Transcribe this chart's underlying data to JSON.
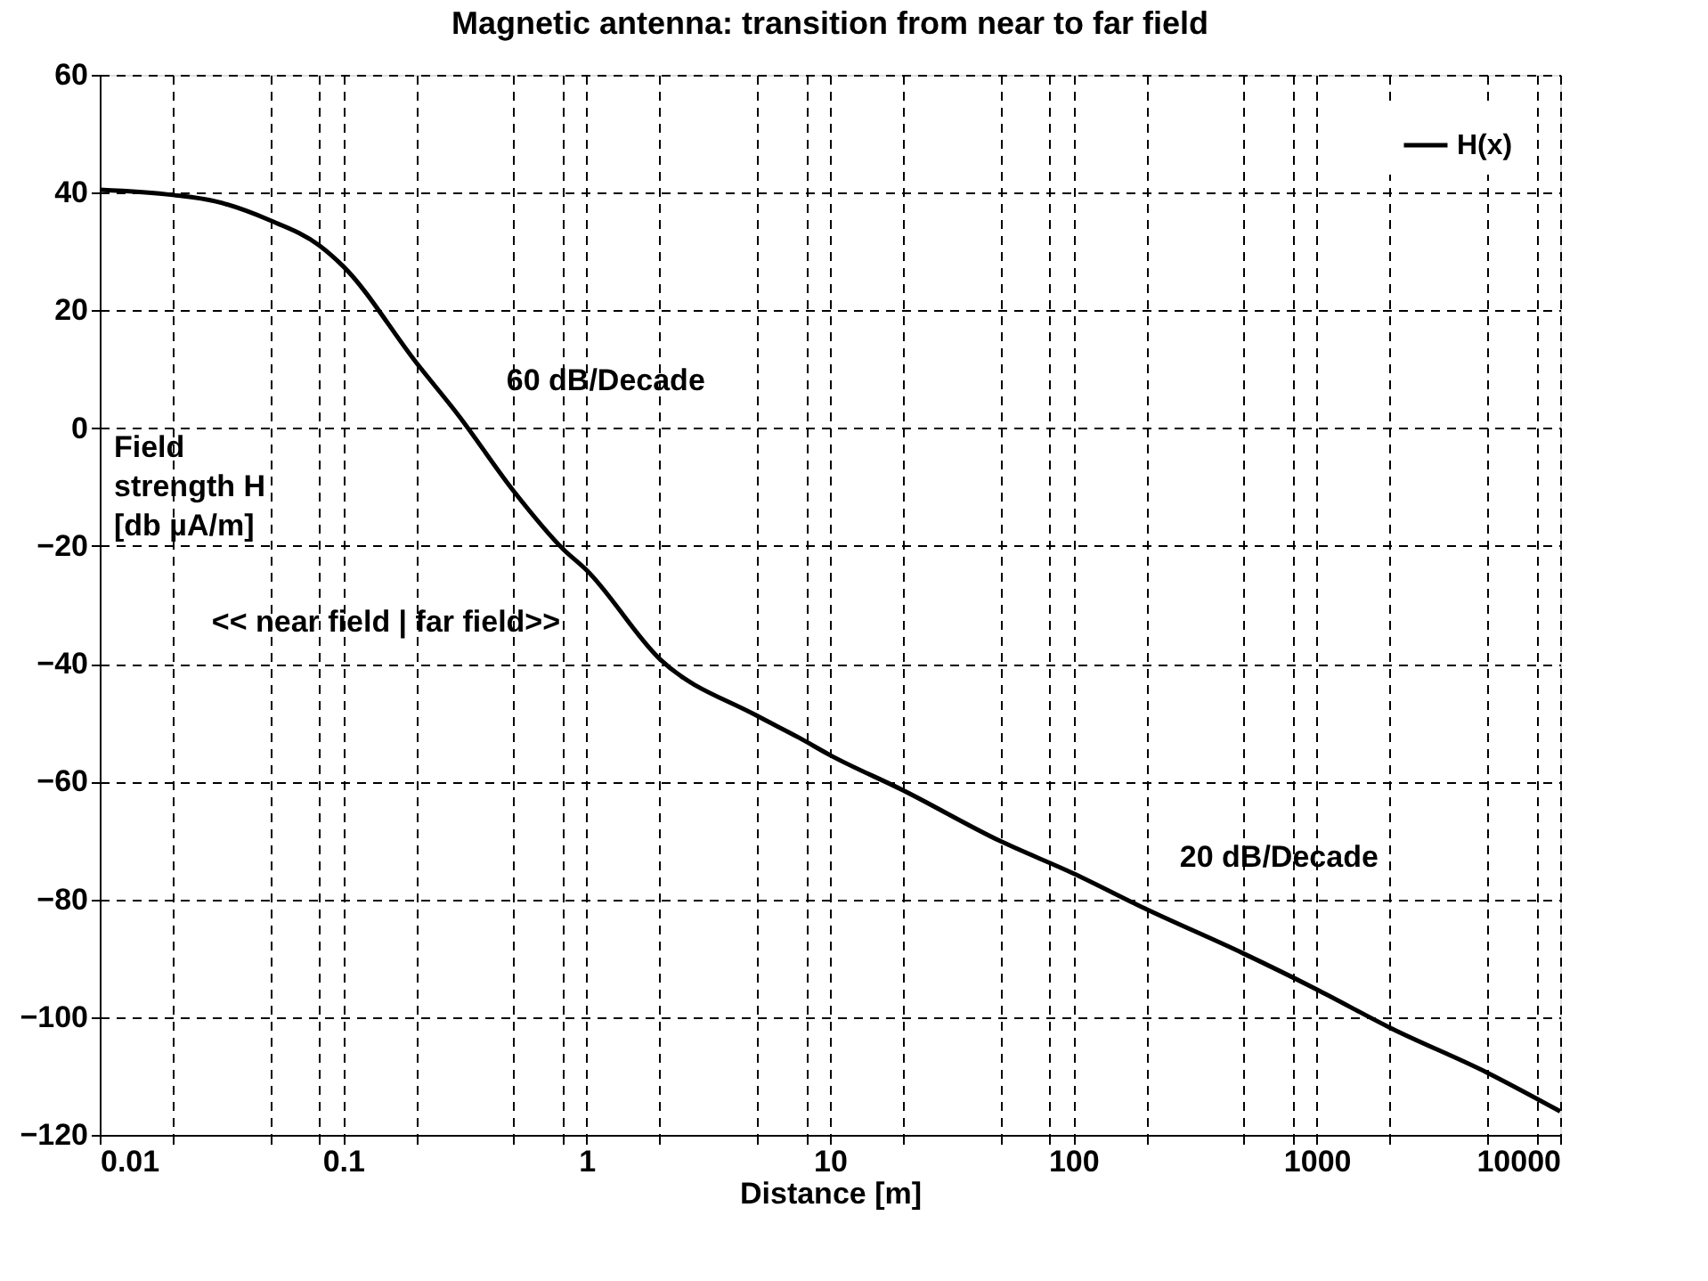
{
  "chart_data": {
    "type": "line",
    "title": "Magnetic antenna: transition from near to far field",
    "xlabel": "Distance [m]",
    "ylabel": "Field strength H [db µA/m]",
    "x": [
      0.01,
      0.02,
      0.03,
      0.05,
      0.08,
      0.1,
      0.2,
      0.3,
      0.5,
      0.8,
      1,
      2,
      5,
      7.5,
      10,
      20,
      50,
      100,
      200,
      500,
      1000,
      2000,
      5000,
      10000
    ],
    "series": [
      {
        "name": "H(x)",
        "color": "#000000",
        "values": [
          40.5,
          39.6,
          38.5,
          35.3,
          31,
          27.5,
          11.1,
          2,
          -10.6,
          -20.5,
          -24.1,
          -39.2,
          -48.8,
          -52.6,
          -55.5,
          -61.5,
          -70.1,
          -75.6,
          -81.7,
          -89.2,
          -95.3,
          -101.8,
          -109.4,
          -116
        ]
      }
    ],
    "log": "x",
    "xlim": [
      0.01,
      10000
    ],
    "ylim": [
      -120,
      60
    ],
    "xticks": [
      0.01,
      {
        "value": 0.02,
        "label": null
      },
      {
        "value": 0.05,
        "label": null
      },
      {
        "value": 0.08,
        "label": null
      },
      0.1,
      {
        "value": 0.2,
        "label": null
      },
      {
        "value": 0.5,
        "label": null
      },
      {
        "value": 0.8,
        "label": null
      },
      1,
      {
        "value": 2,
        "label": null
      },
      {
        "value": 5,
        "label": null
      },
      {
        "value": 8,
        "label": null
      },
      10,
      {
        "value": 20,
        "label": null
      },
      {
        "value": 50,
        "label": null
      },
      {
        "value": 80,
        "label": null
      },
      100,
      {
        "value": 200,
        "label": null
      },
      {
        "value": 500,
        "label": null
      },
      {
        "value": 800,
        "label": null
      },
      1000,
      {
        "value": 2000,
        "label": null
      },
      {
        "value": 5000,
        "label": null
      },
      {
        "value": 8000,
        "label": null
      },
      10000
    ],
    "yticks": [
      -120,
      -100,
      -80,
      -60,
      -40,
      -20,
      0,
      20,
      40,
      60
    ],
    "grid": true,
    "legend": "top right",
    "line_style": "solid",
    "marker": "none",
    "annotations": [
      "60 dB/Decade",
      "<< near field | far field>>",
      "20 dB/Decade"
    ]
  }
}
